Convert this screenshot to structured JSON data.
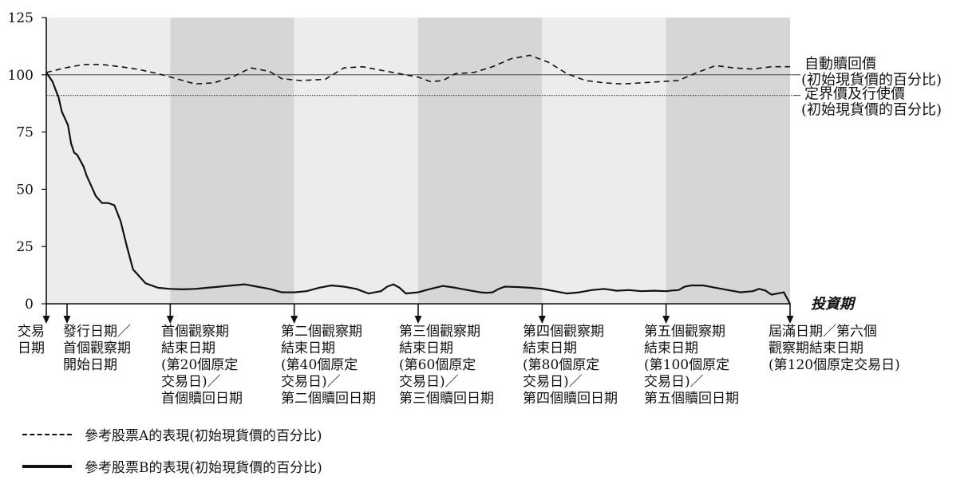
{
  "chart_data": {
    "type": "line",
    "ylim": [
      0,
      125
    ],
    "xlim": [
      0,
      120
    ],
    "y_ticks": [
      "0",
      "25",
      "50",
      "75",
      "100",
      "125"
    ],
    "y_tick_values": [
      0,
      25,
      50,
      75,
      100,
      125
    ],
    "x_axis_label": "投資期",
    "bands": [
      {
        "from": 0,
        "to": 20,
        "shade": "#ececec"
      },
      {
        "from": 20,
        "to": 40,
        "shade": "#d6d6d8"
      },
      {
        "from": 40,
        "to": 60,
        "shade": "#ececec"
      },
      {
        "from": 60,
        "to": 80,
        "shade": "#d6d6d8"
      },
      {
        "from": 80,
        "to": 100,
        "shade": "#ececec"
      },
      {
        "from": 100,
        "to": 120,
        "shade": "#d6d6d8"
      }
    ],
    "reference_lines": [
      {
        "y": 100,
        "label_lines": [
          "自動贖回價",
          "(初始現貨價的百分比)"
        ],
        "style": "thin"
      },
      {
        "y": 91,
        "label_lines": [
          "定界價及行使價",
          "(初始現貨價的百分比)"
        ],
        "style": "dotted"
      }
    ],
    "series": [
      {
        "name": "參考股票A的表現(初始現貨價的百分比)",
        "style": "dashed",
        "x": [
          0,
          3,
          6,
          9,
          12,
          15,
          18,
          21,
          24,
          27,
          30,
          33,
          36,
          38,
          41,
          45,
          48,
          51,
          54,
          57,
          60,
          62,
          64,
          66,
          69,
          72,
          75,
          78,
          81,
          84,
          87,
          90,
          93,
          96,
          99,
          102,
          105,
          108,
          111,
          114,
          117,
          120
        ],
        "y": [
          101,
          103,
          104.5,
          104.5,
          103.5,
          102.3,
          100.5,
          98.3,
          96,
          96.5,
          99,
          103,
          101.5,
          98.3,
          97.5,
          98,
          103,
          103.5,
          102,
          100.5,
          99,
          97,
          97.5,
          100.5,
          101,
          103.5,
          107,
          108.5,
          105.5,
          100.5,
          97.5,
          96.5,
          96,
          96.5,
          97,
          97.5,
          101,
          104,
          103,
          102.5,
          103.5,
          103.5
        ]
      },
      {
        "name": "參考股票B的表現(初始現貨價的百分比)",
        "style": "solid",
        "x": [
          0,
          1,
          2,
          2.5,
          3.5,
          4,
          4.5,
          5,
          6,
          6.5,
          7,
          7.5,
          8,
          9,
          10,
          11,
          12,
          13,
          14,
          16,
          18,
          20,
          22,
          24,
          26,
          28,
          30,
          32,
          34,
          36,
          38,
          40,
          42,
          44,
          46,
          48,
          50,
          52,
          54,
          55,
          56,
          57,
          58,
          60,
          62,
          64,
          66,
          68,
          70,
          71,
          72,
          73,
          74,
          76,
          78,
          80,
          82,
          84,
          86,
          88,
          90,
          92,
          94,
          96,
          98,
          100,
          101,
          102,
          103,
          104,
          106,
          108,
          110,
          112,
          114,
          115,
          116,
          117,
          118,
          119,
          120
        ],
        "y": [
          101,
          97,
          90,
          84,
          78,
          70,
          66,
          65,
          60,
          56,
          53,
          50,
          47,
          44,
          44,
          43,
          36,
          25,
          15,
          9,
          7,
          6.5,
          6.3,
          6.5,
          7,
          7.5,
          8,
          8.5,
          7.5,
          6.5,
          5,
          5,
          5.5,
          7,
          8,
          7.5,
          6.5,
          4.5,
          5.5,
          7.5,
          8.5,
          7,
          4.5,
          5,
          6.5,
          7.8,
          7,
          6,
          5,
          4.8,
          5,
          6.5,
          7.5,
          7.3,
          7,
          6.5,
          5.5,
          4.5,
          5,
          6,
          6.5,
          5.7,
          6,
          5.5,
          5.7,
          5.5,
          5.8,
          6,
          7.5,
          8,
          8,
          7,
          6,
          5,
          5.5,
          6.5,
          5.8,
          4,
          4.5,
          5,
          0
        ]
      }
    ],
    "milestones": [
      {
        "x": 0,
        "lines": [
          "交易",
          "日期"
        ]
      },
      {
        "x": 2,
        "lines": [
          "發行日期／",
          "首個觀察期",
          "開始日期"
        ]
      },
      {
        "x": 20,
        "lines": [
          "首個觀察期",
          "結束日期",
          "(第20個原定",
          "交易日)／",
          "首個贖回日期"
        ]
      },
      {
        "x": 40,
        "lines": [
          "第二個觀察期",
          "結束日期",
          "(第40個原定",
          "交易日)／",
          "第二個贖回日期"
        ]
      },
      {
        "x": 60,
        "lines": [
          "第三個觀察期",
          "結束日期",
          "(第60個原定",
          "交易日)／",
          "第三個贖回日期"
        ]
      },
      {
        "x": 80,
        "lines": [
          "第四個觀察期",
          "結束日期",
          "(第80個原定",
          "交易日)／",
          "第四個贖回日期"
        ]
      },
      {
        "x": 100,
        "lines": [
          "第五個觀察期",
          "結束日期",
          "(第100個原定",
          "交易日)／",
          "第五個贖回日期"
        ]
      },
      {
        "x": 120,
        "lines": [
          "屆滿日期／第六個",
          "觀察期結束日期",
          "(第120個原定交易日)"
        ]
      }
    ]
  },
  "legend": {
    "series_a": "參考股票A的表現(初始現貨價的百分比)",
    "series_b": "參考股票B的表現(初始現貨價的百分比)"
  }
}
